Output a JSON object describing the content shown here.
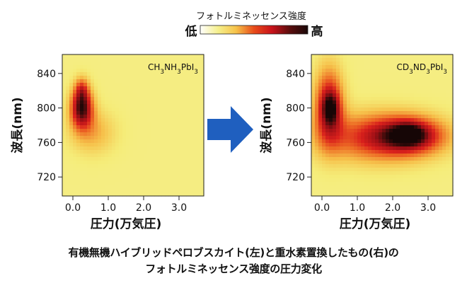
{
  "colorbar": {
    "title": "フォトルミネッセンス強度",
    "low_label": "低",
    "high_label": "高",
    "colors": [
      "#ffffff",
      "#f5ef8c",
      "#f6c34a",
      "#e84b1a",
      "#c8121a",
      "#5a0d0d",
      "#1a0808"
    ]
  },
  "arrow_color": "#1f5fbf",
  "caption": {
    "line1": "有機無機ハイブリッドペロブスカイト(左)と重水素置換したもの(右)の",
    "line2": "フォトルミネッセンス強度の圧力変化"
  },
  "chart_data": [
    {
      "type": "heatmap",
      "compound_label": [
        "CH",
        "3",
        "NH",
        "3",
        "PbI",
        "3"
      ],
      "xlabel": "圧力(万気圧)",
      "ylabel": "波長(nm)",
      "xlim": [
        -0.3,
        3.7
      ],
      "ylim": [
        698,
        862
      ],
      "xticks": [
        0.0,
        1.0,
        2.0,
        3.0
      ],
      "xtick_labels": [
        "0.0",
        "1.0",
        "2.0",
        "3.0"
      ],
      "yticks": [
        720,
        760,
        800,
        840
      ],
      "ytick_labels": [
        "720",
        "760",
        "800",
        "840"
      ],
      "background_intensity": 0.12,
      "regions": [
        {
          "x": 0.25,
          "y": 800,
          "sx": 0.22,
          "sy": 16,
          "intensity": 0.78
        },
        {
          "x": 0.25,
          "y": 822,
          "sx": 0.14,
          "sy": 10,
          "intensity": 0.3
        },
        {
          "x": 0.55,
          "y": 772,
          "sx": 0.45,
          "sy": 18,
          "intensity": 0.22
        }
      ]
    },
    {
      "type": "heatmap",
      "compound_label": [
        "CD",
        "3",
        "ND",
        "3",
        "PbI",
        "3"
      ],
      "xlabel": "圧力(万気圧)",
      "ylabel": "波長(nm)",
      "xlim": [
        -0.3,
        3.7
      ],
      "ylim": [
        698,
        862
      ],
      "xticks": [
        0.0,
        1.0,
        2.0,
        3.0
      ],
      "xtick_labels": [
        "0.0",
        "1.0",
        "2.0",
        "3.0"
      ],
      "yticks": [
        720,
        760,
        800,
        840
      ],
      "ytick_labels": [
        "720",
        "760",
        "800",
        "840"
      ],
      "background_intensity": 0.12,
      "regions": [
        {
          "x": 0.2,
          "y": 802,
          "sx": 0.28,
          "sy": 30,
          "intensity": 0.62
        },
        {
          "x": 0.25,
          "y": 800,
          "sx": 0.16,
          "sy": 12,
          "intensity": 0.35
        },
        {
          "x": 1.6,
          "y": 766,
          "sx": 1.1,
          "sy": 20,
          "intensity": 0.5
        },
        {
          "x": 2.5,
          "y": 768,
          "sx": 0.65,
          "sy": 14,
          "intensity": 0.55
        },
        {
          "x": 2.45,
          "y": 770,
          "sx": 0.28,
          "sy": 8,
          "intensity": 0.3
        }
      ]
    }
  ]
}
